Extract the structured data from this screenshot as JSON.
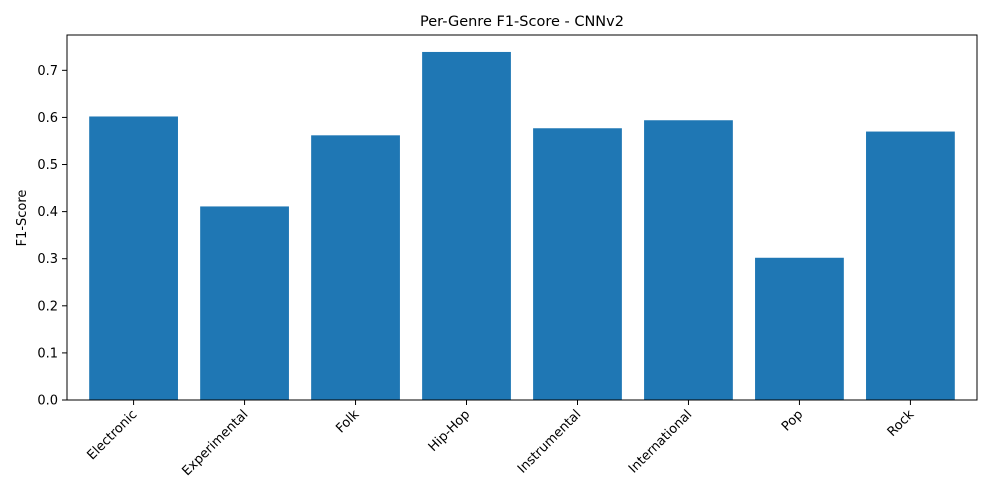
{
  "chart_data": {
    "type": "bar",
    "title": "Per-Genre F1-Score - CNNv2",
    "xlabel": "",
    "ylabel": "F1-Score",
    "categories": [
      "Electronic",
      "Experimental",
      "Folk",
      "Hip-Hop",
      "Instrumental",
      "International",
      "Pop",
      "Rock"
    ],
    "values": [
      0.602,
      0.411,
      0.562,
      0.739,
      0.577,
      0.594,
      0.302,
      0.57
    ],
    "ylim": [
      0,
      0.775
    ],
    "yticks": [
      "0.0",
      "0.1",
      "0.2",
      "0.3",
      "0.4",
      "0.5",
      "0.6",
      "0.7"
    ],
    "bar_color": "#1f77b4",
    "grid": false
  }
}
